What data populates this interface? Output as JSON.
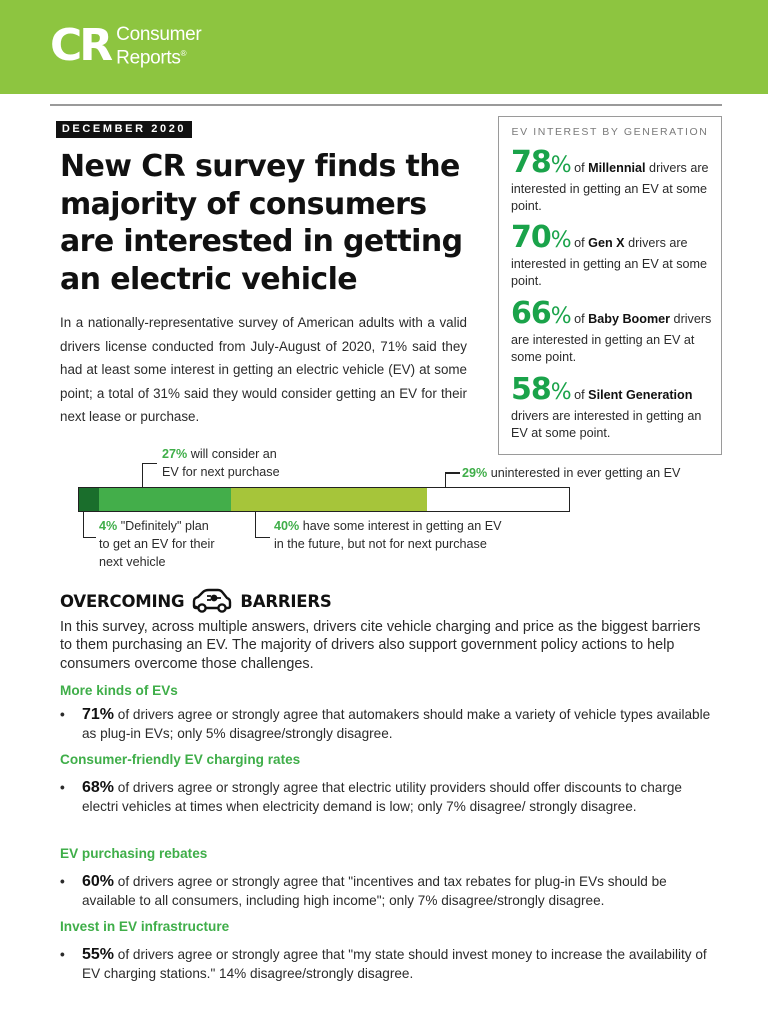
{
  "brand": {
    "logo_mark": "CR",
    "logo_line1": "Consumer",
    "logo_line2": "Reports",
    "logo_reg": "®",
    "color": "#8dc540"
  },
  "date_badge": "DECEMBER 2020",
  "title": "New CR survey finds the majority of consumers are interested in getting an electric vehicle",
  "intro": "In a nationally-representative survey of American adults with a valid drivers license conducted from July-August of 2020, 71% said they had at least some interest in getting an electric vehicle (EV) at some point; a total of 31% said they would consider getting an EV for their next lease or purchase.",
  "generation_box": {
    "heading": "EV INTEREST BY GENERATION",
    "items": [
      {
        "pct": "78",
        "sign": "%",
        "pre": " of ",
        "group": "Millennial",
        "post": " drivers are interested in getting an EV at some point."
      },
      {
        "pct": "70",
        "sign": "%",
        "pre": " of ",
        "group": "Gen X",
        "post": " drivers are interested in getting an EV at some point."
      },
      {
        "pct": "66",
        "sign": "%",
        "pre": " of ",
        "group": "Baby Boomer",
        "post": " drivers are interested in getting an EV at some point."
      },
      {
        "pct": "58",
        "sign": "%",
        "pre": " of ",
        "group": "Silent Generation",
        "post": " drivers are interested in getting an EV at some point."
      }
    ]
  },
  "interest_bar": {
    "segments": [
      {
        "name": "definitely",
        "value": 4,
        "color": "#1a6e2c"
      },
      {
        "name": "consider-next",
        "value": 27,
        "color": "#43ae4a"
      },
      {
        "name": "future-interest",
        "value": 40,
        "color": "#a6c53a"
      },
      {
        "name": "uninterested",
        "value": 29,
        "color": "#ffffff"
      }
    ],
    "labels": {
      "consider": {
        "pct": "27%",
        "text_line1": " will consider an",
        "text_line2": "EV for next purchase"
      },
      "uninterested": {
        "pct": "29%",
        "text": " uninterested in ever getting an EV"
      },
      "definitely": {
        "pct": "4%",
        "text_line1": " \"Definitely\" plan",
        "text_line2": "to get an EV for their",
        "text_line3": "next vehicle"
      },
      "future": {
        "pct": "40%",
        "text_line1": " have some interest in getting an EV",
        "text_line2": "in the future, but not for next purchase"
      }
    }
  },
  "barriers": {
    "title_left": "OVERCOMING",
    "title_right": "BARRIERS",
    "icon": "ev-car-icon",
    "lead": "In this survey, across multiple answers, drivers cite vehicle charging and price as the biggest barriers to them purchasing an EV. The majority of drivers also support government policy actions to help consumers overcome those challenges.",
    "sections": [
      {
        "heading": "More kinds of EVs",
        "bullet_mark": "•",
        "pct": "71%",
        "text": " of drivers agree or strongly agree that automakers should make a variety of vehicle types available as plug-in EVs; only 5% disagree/strongly disagree."
      },
      {
        "heading": "Consumer-friendly EV charging rates",
        "bullet_mark": "•",
        "pct": "68%",
        "text": " of drivers agree or strongly agree that electric utility providers should offer discounts to charge electri vehicles at times when electricity demand is low; only 7% disagree/ strongly disagree."
      },
      {
        "heading": "EV purchasing rebates",
        "bullet_mark": "•",
        "pct": "60%",
        "text": " of drivers agree or strongly agree that \"incentives and tax rebates for plug-in EVs should be available to all consumers, including high income\"; only 7% disagree/strongly disagree."
      },
      {
        "heading": "Invest in EV infrastructure",
        "bullet_mark": "•",
        "pct": "55%",
        "text": " of drivers agree or strongly agree that \"my state should invest money to increase the availability of EV charging stations.\" 14% disagree/strongly disagree."
      }
    ]
  }
}
